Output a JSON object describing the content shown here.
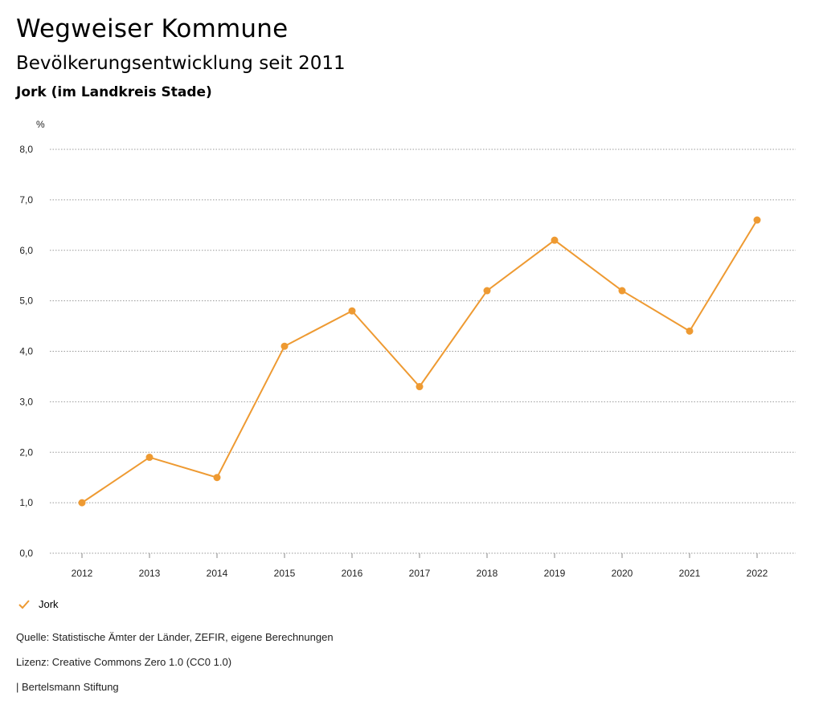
{
  "header": {
    "title": "Wegweiser Kommune",
    "subtitle": "Bevölkerungsentwicklung seit 2011",
    "region": "Jork (im Landkreis Stade)"
  },
  "legend": {
    "label": "Jork",
    "icon": "check-icon"
  },
  "footer": {
    "source": "Quelle: Statistische Ämter der Länder, ZEFIR, eigene Berechnungen",
    "license": "Lizenz: Creative Commons Zero 1.0 (CC0 1.0)",
    "publisher": "| Bertelsmann Stiftung"
  },
  "colors": {
    "series": "#EE9A32",
    "grid": "#999999",
    "text": "#222222"
  },
  "chart_data": {
    "type": "line",
    "unit_label": "%",
    "x": [
      "2012",
      "2013",
      "2014",
      "2015",
      "2016",
      "2017",
      "2018",
      "2019",
      "2020",
      "2021",
      "2022"
    ],
    "series": [
      {
        "name": "Jork",
        "values": [
          1.0,
          1.9,
          1.5,
          4.1,
          4.8,
          3.3,
          5.2,
          6.2,
          5.2,
          4.4,
          6.6
        ]
      }
    ],
    "ylim": [
      0,
      8
    ],
    "yticks": [
      "0,0",
      "1,0",
      "2,0",
      "3,0",
      "4,0",
      "5,0",
      "6,0",
      "7,0",
      "8,0"
    ],
    "grid": true,
    "legend_position": "bottom-left"
  }
}
